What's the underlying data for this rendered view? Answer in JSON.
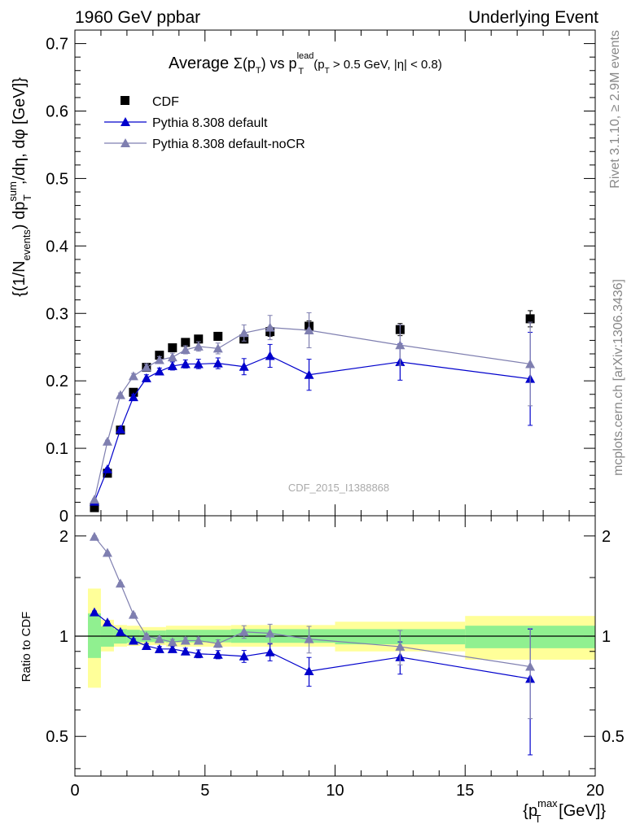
{
  "header": {
    "left": "1960 GeV ppbar",
    "right": "Underlying Event"
  },
  "side_labels": {
    "rivet": "Rivet 3.1.10, ≥ 2.9M events",
    "mcplots": "mcplots.cern.ch [arXiv:1306.3436]"
  },
  "chart_data": [
    {
      "type": "scatter",
      "panel": "main",
      "title": "Average Σ(p_T) vs p_T^lead (p_T > 0.5 GeV, |η| < 0.8)",
      "title_parts": {
        "pre": "Average ",
        "sigma": "Σ(p",
        "sub_t1": "T",
        "mid": ") vs p",
        "sup_lead": "lead",
        "sub_t2": "T",
        "cuts1": " (p",
        "sub_t3": "T",
        "cuts2": " > 0.5 GeV, |η| < 0.8)"
      },
      "watermark": "CDF_2015_I1388868",
      "ylabel_parts": {
        "a": "{(1/N",
        "a_sub": "events",
        "b": ") dp",
        "b_sup": "sum",
        "b_sub": "T",
        "c": ",/dη, dφ [GeV]}"
      },
      "xlim": [
        0,
        20
      ],
      "ylim": [
        0,
        0.72
      ],
      "y_ticks": [
        "0",
        "0.1",
        "0.2",
        "0.3",
        "0.4",
        "0.5",
        "0.6",
        "0.7"
      ],
      "legend_position": "top-left",
      "series": [
        {
          "name": "CDF",
          "color": "#000000",
          "marker": "square",
          "x": [
            0.75,
            1.25,
            1.75,
            2.25,
            2.75,
            3.25,
            3.75,
            4.25,
            4.75,
            5.5,
            6.5,
            7.5,
            9.0,
            12.5,
            17.5
          ],
          "y": [
            0.012,
            0.063,
            0.127,
            0.183,
            0.22,
            0.238,
            0.249,
            0.257,
            0.262,
            0.266,
            0.262,
            0.273,
            0.281,
            0.276,
            0.292
          ],
          "yerr": [
            0.002,
            0.004,
            0.005,
            0.005,
            0.005,
            0.005,
            0.005,
            0.005,
            0.005,
            0.006,
            0.006,
            0.007,
            0.008,
            0.009,
            0.012
          ]
        },
        {
          "name": "Pythia 8.308 default",
          "color": "#0000cc",
          "marker": "triangle",
          "x": [
            0.75,
            1.25,
            1.75,
            2.25,
            2.75,
            3.25,
            3.75,
            4.25,
            4.75,
            5.5,
            6.5,
            7.5,
            9.0,
            12.5,
            17.5
          ],
          "y": [
            0.021,
            0.069,
            0.128,
            0.176,
            0.204,
            0.214,
            0.222,
            0.225,
            0.225,
            0.226,
            0.221,
            0.237,
            0.209,
            0.228,
            0.203
          ],
          "yerr": [
            0.001,
            0.002,
            0.003,
            0.004,
            0.005,
            0.005,
            0.006,
            0.006,
            0.007,
            0.008,
            0.012,
            0.017,
            0.023,
            0.027,
            0.069
          ]
        },
        {
          "name": "Pythia 8.308 default-noCR",
          "color": "#7f7fb0",
          "marker": "triangle",
          "x": [
            0.75,
            1.25,
            1.75,
            2.25,
            2.75,
            3.25,
            3.75,
            4.25,
            4.75,
            5.5,
            6.5,
            7.5,
            9.0,
            12.5,
            17.5
          ],
          "y": [
            0.024,
            0.11,
            0.179,
            0.207,
            0.22,
            0.231,
            0.235,
            0.246,
            0.251,
            0.248,
            0.271,
            0.279,
            0.275,
            0.253,
            0.225
          ],
          "yerr": [
            0.001,
            0.002,
            0.003,
            0.004,
            0.005,
            0.005,
            0.006,
            0.006,
            0.007,
            0.008,
            0.012,
            0.018,
            0.026,
            0.03,
            0.062
          ]
        }
      ]
    },
    {
      "type": "scatter",
      "panel": "ratio",
      "ylabel": "Ratio to CDF",
      "xlabel_parts": {
        "a": "{p",
        "sup": "max",
        "sub": "T",
        "b": " [GeV]}"
      },
      "xlim": [
        0,
        20
      ],
      "ylim": [
        0.38,
        2.3
      ],
      "log_y": true,
      "x_ticks": [
        "0",
        "5",
        "10",
        "15",
        "20"
      ],
      "y_ticks": [
        "0.5",
        "1",
        "2"
      ],
      "bands": [
        {
          "xlo": 0.5,
          "xhi": 1.0,
          "inner": [
            0.86,
            1.17
          ],
          "outer": [
            0.7,
            1.39
          ]
        },
        {
          "xlo": 1.0,
          "xhi": 1.5,
          "inner": [
            0.93,
            1.07
          ],
          "outer": [
            0.9,
            1.12
          ]
        },
        {
          "xlo": 1.5,
          "xhi": 2.0,
          "inner": [
            0.95,
            1.05
          ],
          "outer": [
            0.93,
            1.08
          ]
        },
        {
          "xlo": 2.0,
          "xhi": 2.5,
          "inner": [
            0.955,
            1.045
          ],
          "outer": [
            0.935,
            1.075
          ]
        },
        {
          "xlo": 2.5,
          "xhi": 3.5,
          "inner": [
            0.96,
            1.04
          ],
          "outer": [
            0.94,
            1.065
          ]
        },
        {
          "xlo": 3.5,
          "xhi": 6.0,
          "inner": [
            0.958,
            1.045
          ],
          "outer": [
            0.93,
            1.075
          ]
        },
        {
          "xlo": 6.0,
          "xhi": 10.0,
          "inner": [
            0.955,
            1.05
          ],
          "outer": [
            0.93,
            1.08
          ]
        },
        {
          "xlo": 10.0,
          "xhi": 15.0,
          "inner": [
            0.945,
            1.05
          ],
          "outer": [
            0.9,
            1.105
          ]
        },
        {
          "xlo": 15.0,
          "xhi": 20.0,
          "inner": [
            0.92,
            1.075
          ],
          "outer": [
            0.85,
            1.15
          ]
        }
      ],
      "band_colors": {
        "inner": "#90f090",
        "outer": "#ffff99"
      },
      "series": [
        {
          "name": "Pythia 8.308 default",
          "color": "#0000cc",
          "x": [
            0.75,
            1.25,
            1.75,
            2.25,
            2.75,
            3.25,
            3.75,
            4.25,
            4.75,
            5.5,
            6.5,
            7.5,
            9.0,
            12.5,
            17.5
          ],
          "y": [
            1.18,
            1.1,
            1.03,
            0.97,
            0.935,
            0.915,
            0.915,
            0.9,
            0.885,
            0.88,
            0.87,
            0.895,
            0.785,
            0.865,
            0.745
          ],
          "yerr": [
            0.01,
            0.01,
            0.01,
            0.012,
            0.015,
            0.016,
            0.018,
            0.02,
            0.024,
            0.025,
            0.036,
            0.052,
            0.078,
            0.096,
            0.305
          ]
        },
        {
          "name": "Pythia 8.308 default-noCR",
          "color": "#7f7fb0",
          "x": [
            0.75,
            1.25,
            1.75,
            2.25,
            2.75,
            3.25,
            3.75,
            4.25,
            4.75,
            5.5,
            6.5,
            7.5,
            9.0,
            12.5,
            17.5
          ],
          "y": [
            1.99,
            1.78,
            1.44,
            1.16,
            1.0,
            0.98,
            0.96,
            0.97,
            0.97,
            0.95,
            1.03,
            1.02,
            0.98,
            0.93,
            0.81
          ],
          "yerr": [
            0.01,
            0.01,
            0.01,
            0.012,
            0.015,
            0.016,
            0.018,
            0.02,
            0.024,
            0.025,
            0.045,
            0.066,
            0.09,
            0.11,
            0.245
          ]
        }
      ]
    }
  ]
}
